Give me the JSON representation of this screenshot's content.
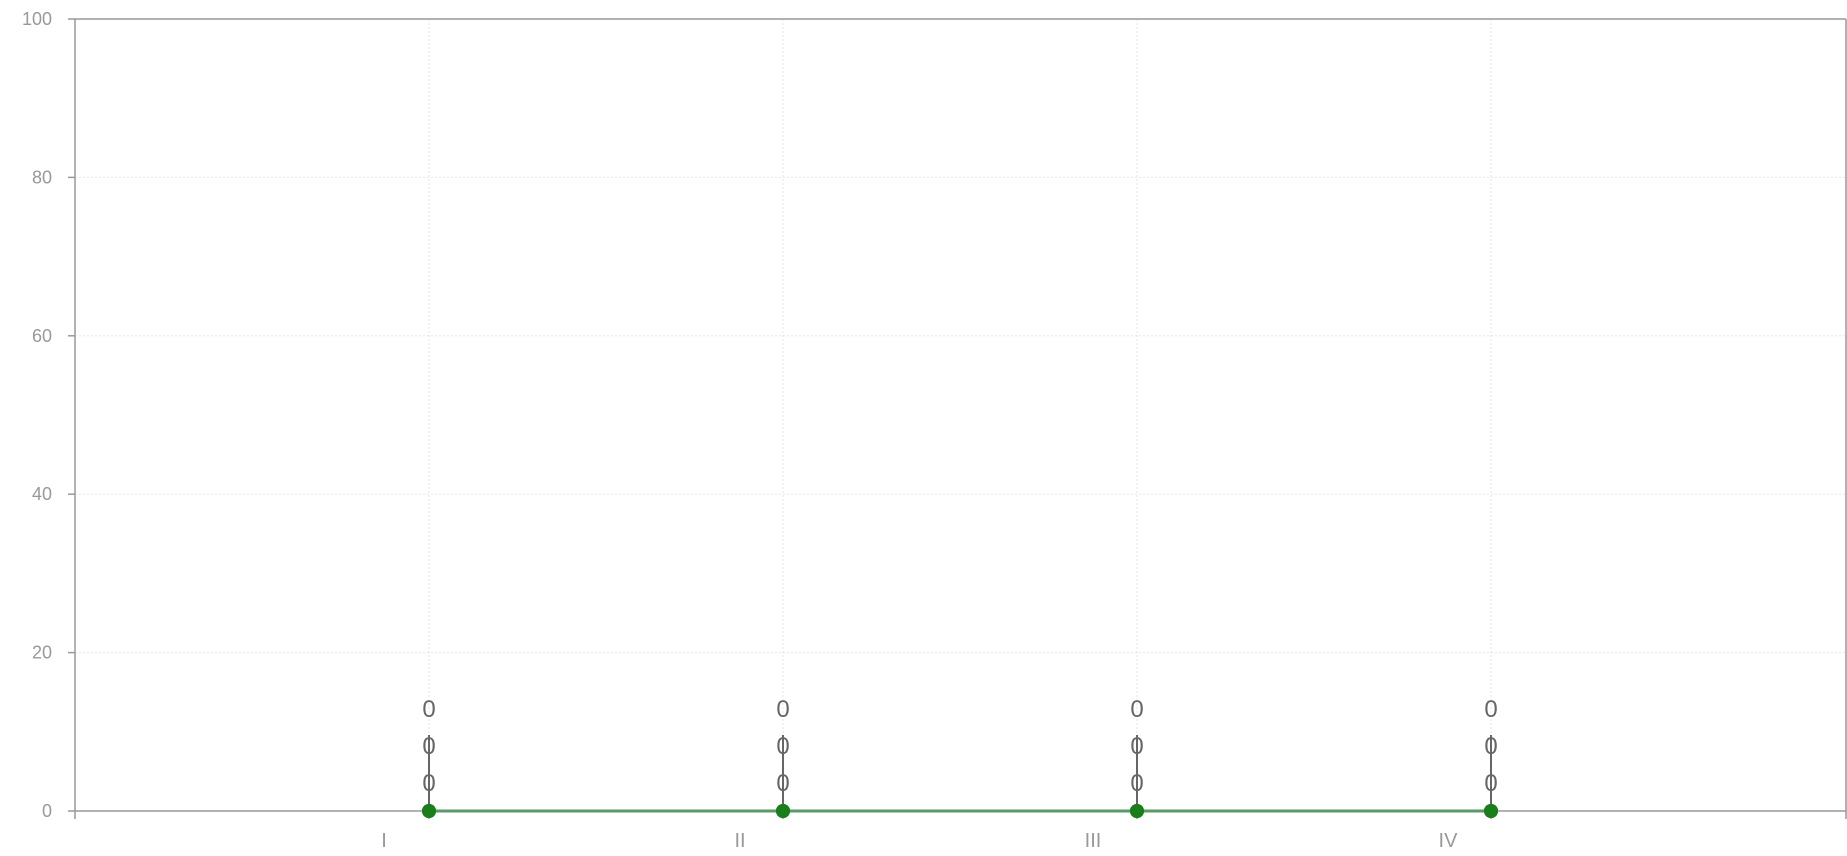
{
  "chart_data": {
    "type": "line",
    "categories": [
      "I",
      "II",
      "III",
      "IV"
    ],
    "series": [
      {
        "values": [
          0,
          0,
          0,
          0
        ]
      },
      {
        "values": [
          0,
          0,
          0,
          0
        ]
      },
      {
        "values": [
          0,
          0,
          0,
          0
        ]
      }
    ],
    "data_labels": [
      [
        "0",
        "0",
        "0",
        "0"
      ],
      [
        "0",
        "0",
        "0",
        "0"
      ],
      [
        "0",
        "0",
        "0",
        "0"
      ]
    ],
    "ylim": [
      0,
      100
    ],
    "y_ticks": [
      0,
      20,
      40,
      60,
      80,
      100
    ],
    "y_tick_labels": [
      "0",
      "20",
      "40",
      "60",
      "80",
      "100"
    ],
    "grid": true,
    "colors": {
      "axis": "#999999",
      "grid": "#e6e6e6",
      "tick_label": "#999999",
      "data_label": "#666666",
      "marker": "#1a7f1a",
      "line": "#5a9a6a",
      "stem": "#333333"
    }
  }
}
